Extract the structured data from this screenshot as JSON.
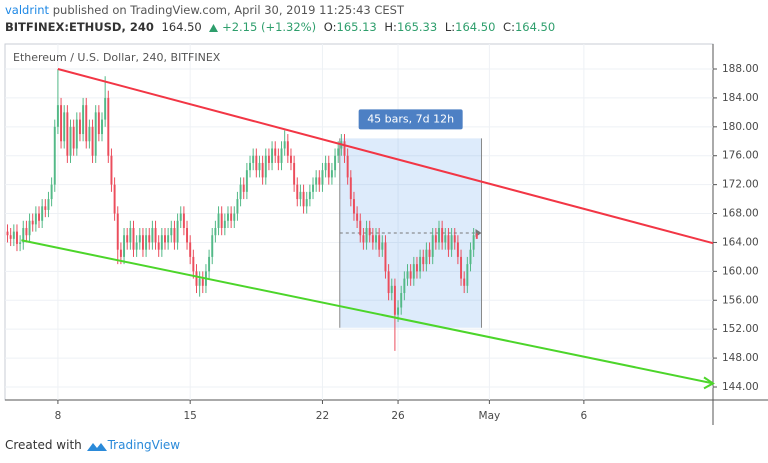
{
  "header": {
    "author": "valdrint",
    "published": "published on TradingView.com, April 30, 2019 11:25:43 CEST",
    "symbol": "BITFINEX:ETHUSD, 240",
    "last": "164.50",
    "change": "+2.15 (+1.32%)",
    "open_label": "O:",
    "open": "165.13",
    "high_label": "H:",
    "high": "165.33",
    "low_label": "L:",
    "low": "164.50",
    "close_label": "C:",
    "close": "164.50"
  },
  "footer": {
    "created": "Created with",
    "brand": "TradingView"
  },
  "chart_data": {
    "type": "candlestick",
    "title": "Ethereum / U.S. Dollar, 240, BITFINEX",
    "up_color": "#53b987",
    "down_color": "#eb4d5c",
    "grid": true,
    "xlim": [
      -0.8,
      224
    ],
    "ylim": [
      142.2,
      191.46
    ],
    "xticks": [
      {
        "value": 16,
        "label": "8"
      },
      {
        "value": 58,
        "label": "15"
      },
      {
        "value": 100,
        "label": "22"
      },
      {
        "value": 124,
        "label": "26"
      },
      {
        "value": 153,
        "label": "May"
      },
      {
        "value": 183,
        "label": "6"
      }
    ],
    "yticks": [
      {
        "value": 144,
        "label": "144.00"
      },
      {
        "value": 148,
        "label": "148.00"
      },
      {
        "value": 152,
        "label": "152.00"
      },
      {
        "value": 156,
        "label": "156.00"
      },
      {
        "value": 160,
        "label": "160.00"
      },
      {
        "value": 164,
        "label": "164.00"
      },
      {
        "value": 168,
        "label": "168.00"
      },
      {
        "value": 172,
        "label": "172.00"
      },
      {
        "value": 176,
        "label": "176.00"
      },
      {
        "value": 180,
        "label": "180.00"
      },
      {
        "value": 184,
        "label": "184.00"
      },
      {
        "value": 188,
        "label": "188.00"
      }
    ],
    "open": [
      165.5,
      165,
      164.5,
      165.5,
      163.8,
      164,
      166,
      165,
      167,
      166.5,
      168,
      167,
      169,
      168.5,
      170,
      172,
      180,
      183,
      178,
      182,
      176,
      180,
      177,
      181,
      179,
      183,
      178,
      180,
      176,
      182,
      179,
      181,
      184,
      176,
      172,
      168,
      163,
      162,
      165,
      164,
      166,
      163,
      164,
      165,
      163,
      165,
      164,
      166,
      164,
      163,
      165,
      164,
      165,
      166,
      164,
      167,
      168,
      166,
      164,
      162,
      160,
      158,
      159,
      158,
      160,
      162,
      165,
      166,
      168,
      166,
      167,
      168,
      167,
      168,
      170,
      172,
      171,
      174,
      175,
      176,
      174,
      175,
      173,
      176,
      175,
      177,
      176,
      175,
      177,
      178,
      176,
      175,
      172,
      170,
      171,
      169,
      170,
      171,
      172,
      173,
      172,
      174,
      175,
      173,
      174,
      176,
      177,
      178,
      176,
      173,
      170,
      168,
      167,
      165,
      164,
      166,
      165,
      164,
      165,
      163,
      164,
      160,
      157,
      158,
      154,
      155,
      157,
      159,
      160,
      159,
      161,
      160,
      162,
      161,
      163,
      162,
      165,
      164,
      166,
      164,
      165,
      163,
      165,
      164,
      162,
      159,
      158,
      161,
      163,
      165.13
    ],
    "high": [
      166.5,
      166,
      166.5,
      166.5,
      165,
      167,
      167,
      168,
      168,
      169,
      169,
      170,
      170,
      171,
      173,
      181,
      188,
      184,
      183,
      183,
      181,
      181,
      182,
      182,
      184,
      184,
      181,
      181,
      183,
      183,
      182,
      187,
      185,
      177,
      173,
      169,
      164,
      166,
      166,
      167,
      167,
      165,
      166,
      166,
      166,
      166,
      167,
      167,
      165,
      166,
      166,
      166,
      167,
      167,
      168,
      169,
      169,
      167,
      165,
      163,
      161,
      160,
      160,
      161,
      163,
      166,
      167,
      169,
      169,
      168,
      169,
      169,
      169,
      171,
      173,
      173,
      175,
      176,
      177,
      177,
      176,
      176,
      177,
      177,
      178,
      178,
      177,
      178,
      179.5,
      179,
      177,
      176,
      173,
      172,
      172,
      171,
      172,
      173,
      174,
      174,
      175,
      176,
      176,
      175,
      177,
      178,
      179,
      179,
      177,
      174,
      171,
      169,
      168,
      166,
      167,
      167,
      166,
      166,
      166,
      165,
      165,
      161,
      159,
      159,
      156,
      158,
      160,
      161,
      161,
      162,
      162,
      163,
      163,
      164,
      164,
      166,
      166,
      167,
      167,
      166,
      166,
      166,
      166,
      165,
      163,
      160,
      162,
      164,
      166,
      165.33
    ],
    "low": [
      164,
      163.5,
      163.5,
      162.8,
      162.8,
      163,
      164,
      164,
      165.5,
      165.5,
      166,
      166,
      167.5,
      167.5,
      169,
      171,
      179,
      177,
      177,
      175,
      175,
      176,
      176,
      178,
      178,
      177,
      177,
      175,
      175,
      178,
      178,
      180,
      175,
      171,
      167,
      161,
      161,
      161,
      163,
      163,
      162,
      162,
      163,
      162,
      162,
      163,
      163,
      163,
      162,
      162,
      163,
      163,
      164,
      163,
      163,
      166,
      165,
      163,
      161,
      159,
      157,
      156.5,
      157,
      157,
      159,
      161,
      164,
      165,
      165,
      165,
      166,
      166,
      166,
      167,
      169,
      170,
      170,
      173,
      174,
      173,
      173,
      172,
      172,
      174,
      174,
      175,
      174,
      174,
      176,
      175,
      174,
      171,
      169,
      169,
      168,
      168,
      169,
      170,
      171,
      171,
      171,
      173,
      172,
      172,
      173,
      175,
      176,
      175,
      172,
      169,
      167,
      166,
      164,
      163,
      163,
      164,
      163,
      163,
      162,
      162,
      159,
      156,
      156,
      149,
      153,
      154,
      156,
      158,
      158,
      158,
      159,
      159,
      160,
      160,
      161,
      161,
      163,
      163,
      163,
      163,
      162,
      162,
      163,
      161,
      158,
      157,
      157,
      160,
      162,
      164.5
    ],
    "close": [
      165,
      164.5,
      165.5,
      163.8,
      164,
      166,
      165,
      167,
      166.5,
      168,
      167,
      169,
      168.5,
      170,
      172,
      180,
      183,
      178,
      182,
      176,
      180,
      177,
      181,
      179,
      183,
      178,
      180,
      176,
      182,
      179,
      181,
      184,
      176,
      172,
      168,
      163,
      162,
      165,
      164,
      166,
      163,
      164,
      165,
      163,
      165,
      164,
      166,
      164,
      163,
      165,
      164,
      165,
      166,
      164,
      167,
      168,
      166,
      164,
      162,
      160,
      158,
      159,
      158,
      160,
      162,
      165,
      166,
      168,
      166,
      167,
      168,
      167,
      168,
      170,
      172,
      171,
      174,
      175,
      176,
      174,
      175,
      173,
      176,
      175,
      177,
      176,
      175,
      177,
      178,
      176,
      175,
      172,
      170,
      171,
      169,
      170,
      171,
      172,
      173,
      172,
      174,
      175,
      173,
      174,
      176,
      177,
      178,
      176,
      173,
      170,
      168,
      167,
      165,
      164,
      166,
      165,
      164,
      165,
      163,
      164,
      160,
      157,
      158,
      154,
      155,
      157,
      159,
      160,
      159,
      161,
      160,
      162,
      161,
      163,
      162,
      165,
      164,
      166,
      164,
      165,
      163,
      165,
      164,
      162,
      159,
      158,
      161,
      163,
      165,
      164.5
    ],
    "trendlines": [
      {
        "color": "#f23645",
        "x": [
          16,
          224
        ],
        "y": [
          188,
          163.9
        ]
      },
      {
        "color": "#4cd52a",
        "x": [
          4.4,
          224
        ],
        "y": [
          164.3,
          144.5
        ]
      }
    ],
    "measure": {
      "label": "45 bars, 7d 12h",
      "x": [
        105.5,
        150.5
      ],
      "y": [
        152.2,
        178.4
      ]
    }
  }
}
